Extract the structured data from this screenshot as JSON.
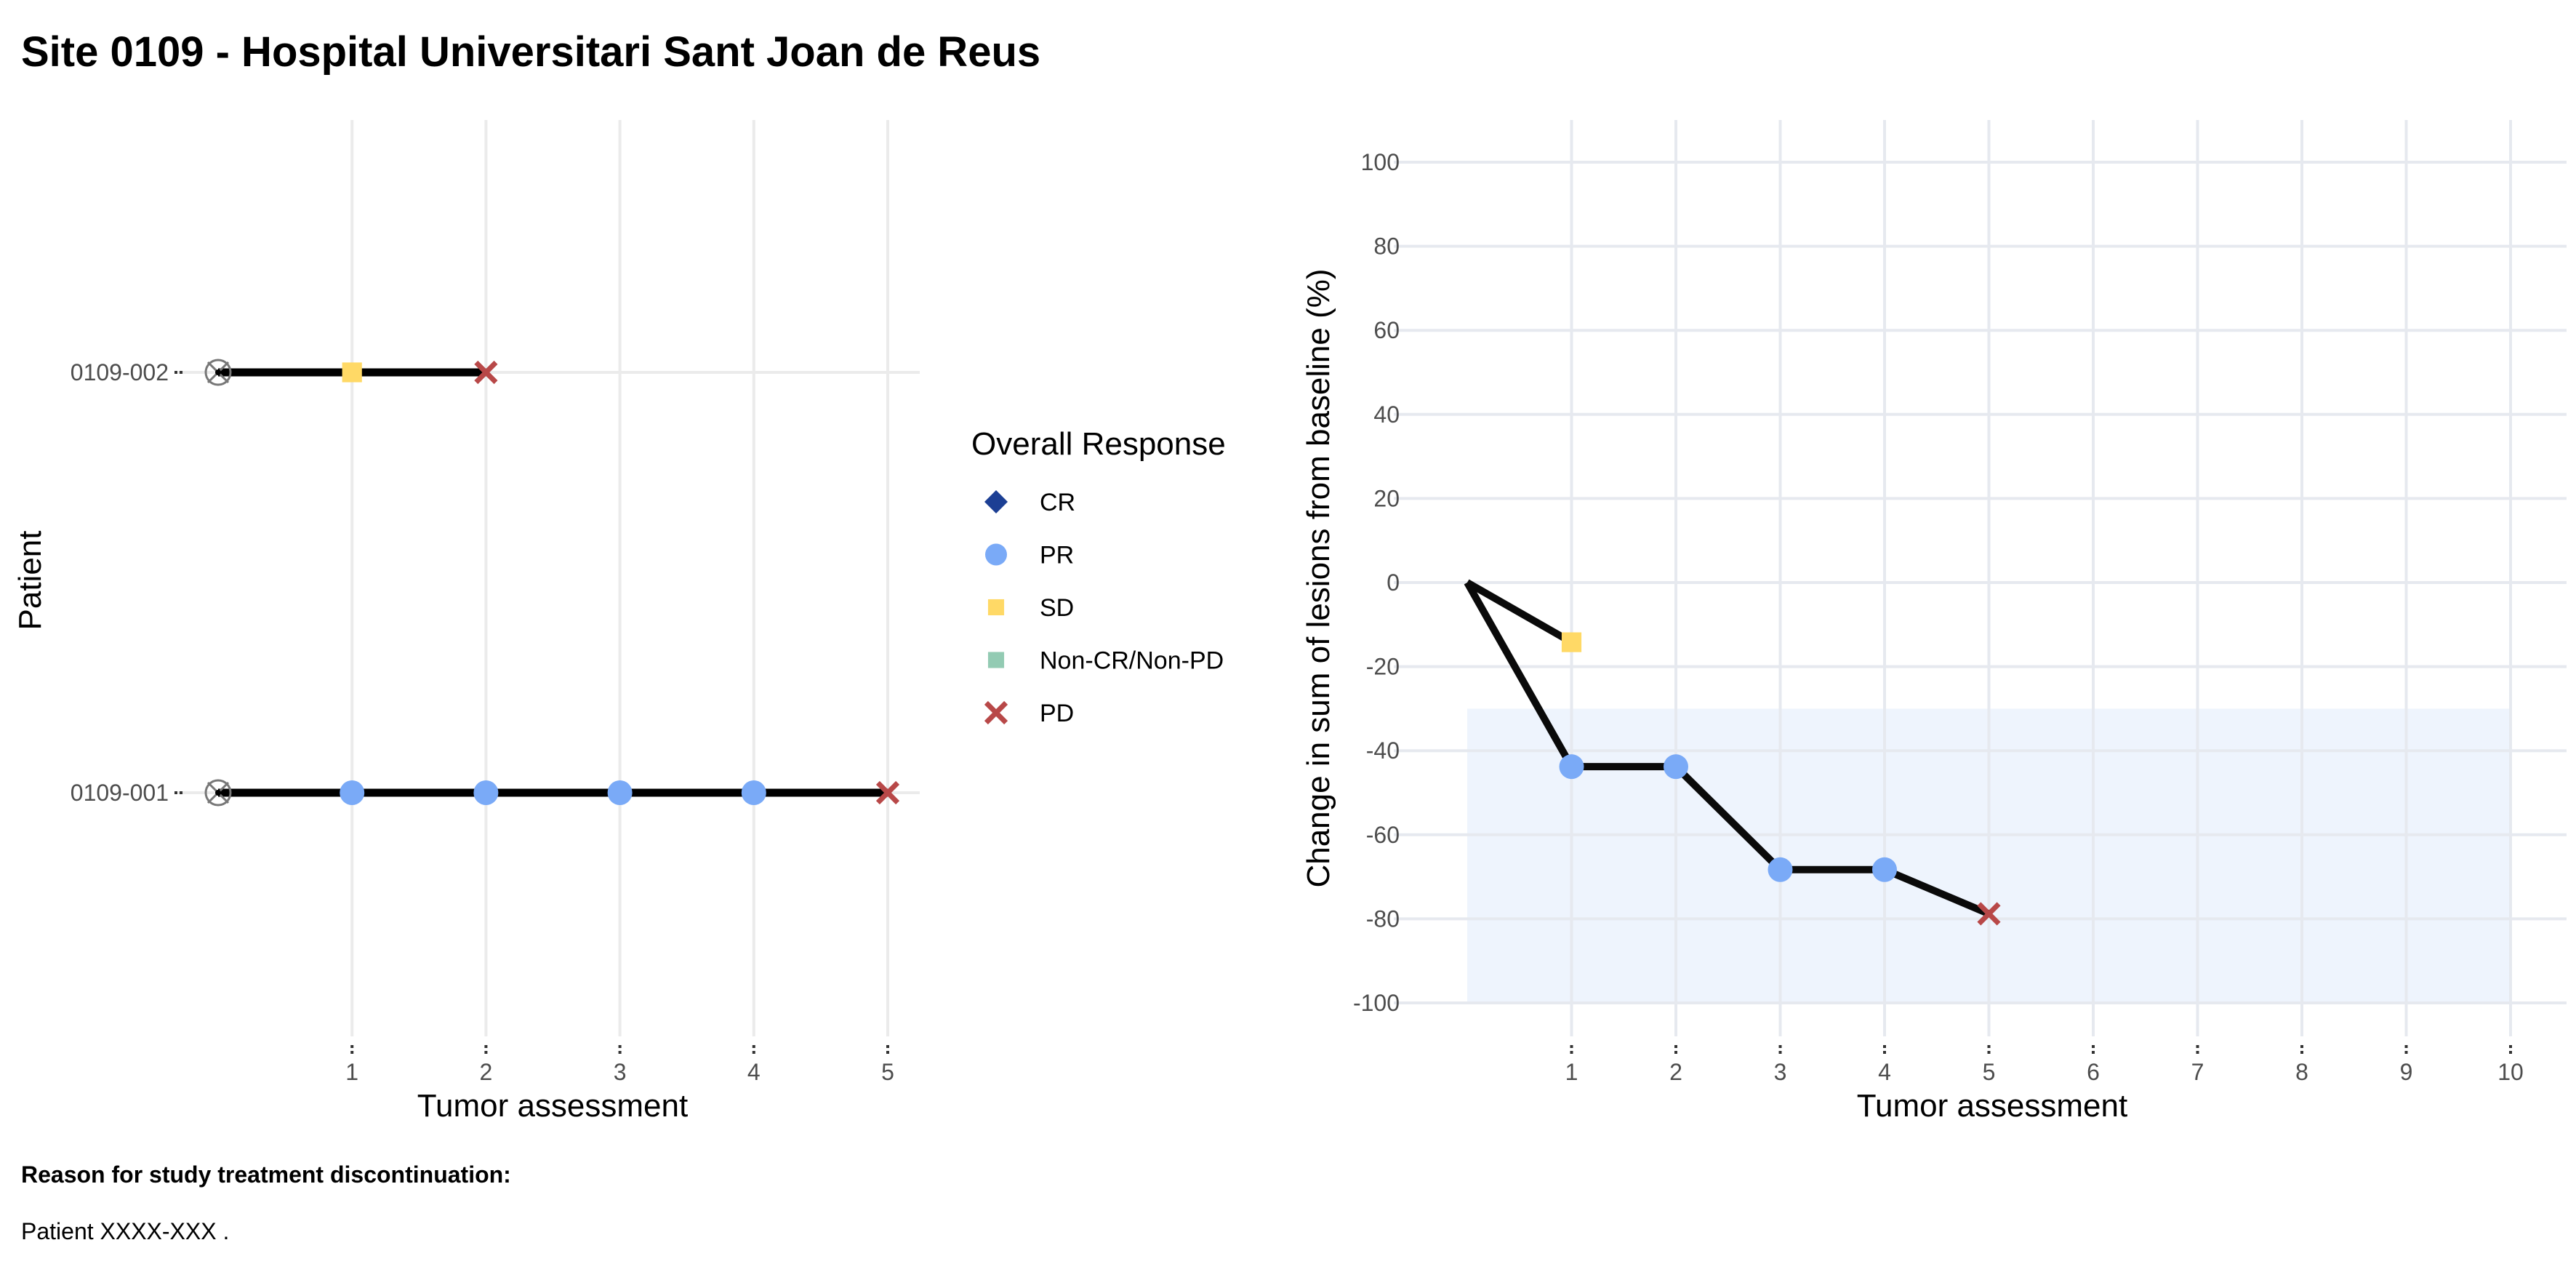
{
  "page": {
    "title": "Site 0109 - Hospital Universitari Sant Joan de Reus",
    "reason_label": "Reason for study treatment discontinuation:",
    "reason_text": "Patient XXXX-XXX ."
  },
  "legend": {
    "title": "Overall Response",
    "entries": [
      {
        "label": "CR",
        "shape": "diamond",
        "color": "#1c3f94"
      },
      {
        "label": "PR",
        "shape": "circle",
        "color": "#7aaaf7"
      },
      {
        "label": "SD",
        "shape": "square",
        "color": "#ffd966"
      },
      {
        "label": "Non-CR/Non-PD",
        "shape": "square",
        "color": "#93cbb3"
      },
      {
        "label": "PD",
        "shape": "cross",
        "color": "#b84848"
      }
    ]
  },
  "chart_data": [
    {
      "type": "swimmer",
      "xlabel": "Tumor assessment",
      "ylabel": "Patient",
      "x_ticks": [
        1,
        2,
        3,
        4,
        5
      ],
      "xlim": [
        0,
        5.25
      ],
      "grid": true,
      "baseline_marker": "target-icon",
      "patients": [
        {
          "id": "0109-002",
          "assessments": [
            {
              "x": 1,
              "response": "SD"
            },
            {
              "x": 2,
              "response": "PD"
            }
          ]
        },
        {
          "id": "0109-001",
          "assessments": [
            {
              "x": 1,
              "response": "PR"
            },
            {
              "x": 2,
              "response": "PR"
            },
            {
              "x": 3,
              "response": "PR"
            },
            {
              "x": 4,
              "response": "PR"
            },
            {
              "x": 5,
              "response": "PD"
            }
          ]
        }
      ]
    },
    {
      "type": "line",
      "xlabel": "Tumor assessment",
      "ylabel": "Change in sum of lesions from baseline (%)",
      "x_ticks": [
        1,
        2,
        3,
        4,
        5,
        6,
        7,
        8,
        9,
        10
      ],
      "y_ticks": [
        100,
        80,
        60,
        40,
        20,
        0,
        -20,
        -40,
        -60,
        -80,
        -100
      ],
      "xlim": [
        -0.7,
        10.5
      ],
      "ylim": [
        -105,
        105
      ],
      "grid": true,
      "shaded_band": {
        "x": [
          0,
          10
        ],
        "y": [
          -100,
          -30
        ],
        "color": "#eef4fd"
      },
      "series": [
        {
          "points": [
            {
              "x": 0,
              "y": 0
            },
            {
              "x": 1,
              "y": -14.2,
              "response": "SD"
            }
          ]
        },
        {
          "points": [
            {
              "x": 0,
              "y": 0
            },
            {
              "x": 1,
              "y": -43.8,
              "response": "PR"
            },
            {
              "x": 2,
              "y": -43.8,
              "response": "PR"
            },
            {
              "x": 3,
              "y": -68.3,
              "response": "PR"
            },
            {
              "x": 4,
              "y": -68.3,
              "response": "PR"
            },
            {
              "x": 5,
              "y": -78.8,
              "response": "PD"
            }
          ]
        }
      ]
    }
  ]
}
